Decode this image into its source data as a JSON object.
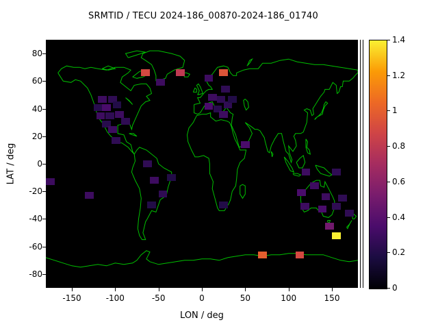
{
  "chart_data": {
    "type": "heatmap",
    "title": "SRMTID / TECU 2024-186_00870-2024-186_01740",
    "xlabel": "LON / deg",
    "ylabel": "LAT / deg",
    "xlim": [
      -180,
      180
    ],
    "ylim": [
      -90,
      90
    ],
    "x_ticks": [
      -150,
      -100,
      -50,
      0,
      50,
      100,
      150
    ],
    "y_ticks": [
      80,
      60,
      40,
      20,
      0,
      -20,
      -40,
      -60,
      -80
    ],
    "background_color": "#000000",
    "coastline_color": "#00c000",
    "colorbar": {
      "min": 0,
      "max": 1.4,
      "ticks": [
        0,
        0.2,
        0.4,
        0.6,
        0.8,
        1,
        1.2,
        1.4
      ],
      "colormap": "inferno-like (black-purple-magenta-orange-yellow)"
    },
    "cell_size_deg": {
      "lon": 10,
      "lat": 5
    },
    "cells": [
      {
        "lon": -65,
        "lat": 66,
        "value": 0.9
      },
      {
        "lon": -25,
        "lat": 66,
        "value": 0.8
      },
      {
        "lon": 25,
        "lat": 66,
        "value": 0.95
      },
      {
        "lon": 70,
        "lat": -66,
        "value": 1.0
      },
      {
        "lon": 113,
        "lat": -66,
        "value": 0.9
      },
      {
        "lon": 155,
        "lat": -52,
        "value": 1.4
      },
      {
        "lon": -115,
        "lat": 47,
        "value": 0.3
      },
      {
        "lon": -103,
        "lat": 47,
        "value": 0.25
      },
      {
        "lon": -120,
        "lat": 41,
        "value": 0.22
      },
      {
        "lon": -110,
        "lat": 41,
        "value": 0.35
      },
      {
        "lon": -98,
        "lat": 43,
        "value": 0.2
      },
      {
        "lon": -117,
        "lat": 35,
        "value": 0.3
      },
      {
        "lon": -106,
        "lat": 35,
        "value": 0.25
      },
      {
        "lon": -95,
        "lat": 36,
        "value": 0.3
      },
      {
        "lon": -110,
        "lat": 29,
        "value": 0.22
      },
      {
        "lon": -88,
        "lat": 31,
        "value": 0.25
      },
      {
        "lon": -103,
        "lat": 25,
        "value": 0.3
      },
      {
        "lon": -99,
        "lat": 17,
        "value": 0.25
      },
      {
        "lon": -48,
        "lat": 59,
        "value": 0.3
      },
      {
        "lon": 8,
        "lat": 62,
        "value": 0.3
      },
      {
        "lon": 27,
        "lat": 54,
        "value": 0.25
      },
      {
        "lon": 12,
        "lat": 48,
        "value": 0.3
      },
      {
        "lon": 22,
        "lat": 47,
        "value": 0.25
      },
      {
        "lon": 8,
        "lat": 42,
        "value": 0.35
      },
      {
        "lon": 18,
        "lat": 40,
        "value": 0.22
      },
      {
        "lon": 30,
        "lat": 43,
        "value": 0.25
      },
      {
        "lon": 25,
        "lat": 36,
        "value": 0.3
      },
      {
        "lon": 35,
        "lat": 47,
        "value": 0.2
      },
      {
        "lon": 50,
        "lat": 14,
        "value": 0.35
      },
      {
        "lon": -63,
        "lat": 0,
        "value": 0.25
      },
      {
        "lon": -55,
        "lat": -12,
        "value": 0.3
      },
      {
        "lon": -45,
        "lat": -22,
        "value": 0.25
      },
      {
        "lon": -58,
        "lat": -30,
        "value": 0.2
      },
      {
        "lon": -35,
        "lat": -10,
        "value": 0.2
      },
      {
        "lon": -175,
        "lat": -13,
        "value": 0.3
      },
      {
        "lon": -130,
        "lat": -23,
        "value": 0.3
      },
      {
        "lon": 25,
        "lat": -30,
        "value": 0.2
      },
      {
        "lon": 120,
        "lat": -6,
        "value": 0.3
      },
      {
        "lon": 155,
        "lat": -6,
        "value": 0.25
      },
      {
        "lon": 130,
        "lat": -16,
        "value": 0.3
      },
      {
        "lon": 115,
        "lat": -21,
        "value": 0.35
      },
      {
        "lon": 143,
        "lat": -24,
        "value": 0.3
      },
      {
        "lon": 162,
        "lat": -25,
        "value": 0.25
      },
      {
        "lon": 119,
        "lat": -31,
        "value": 0.3
      },
      {
        "lon": 139,
        "lat": -33,
        "value": 0.35
      },
      {
        "lon": 155,
        "lat": -31,
        "value": 0.25
      },
      {
        "lon": 147,
        "lat": -45,
        "value": 0.5
      },
      {
        "lon": 170,
        "lat": -36,
        "value": 0.25
      }
    ]
  }
}
